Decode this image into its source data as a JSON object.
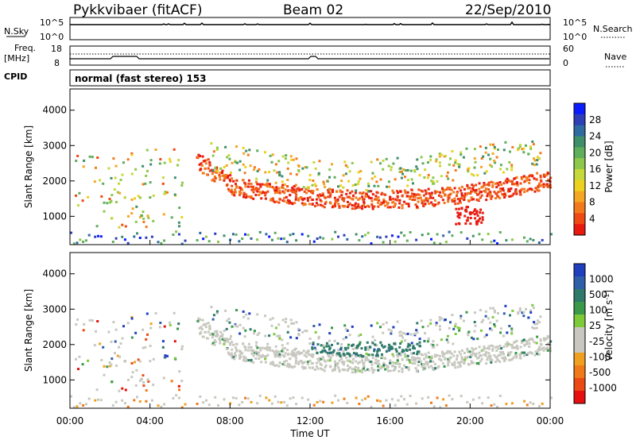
{
  "header": {
    "station": "Pykkvibaer (fitACF)",
    "beam": "Beam 02",
    "date": "22/Sep/2010"
  },
  "status": {
    "nsky_label": "N.Sky",
    "nsky_ticks": [
      "10^5",
      "10^0"
    ],
    "nsearch_label": "N.Search",
    "nsearch_ticks": [
      "10^5",
      "10^0"
    ],
    "freq_label_1": "Freq.",
    "freq_label_2": "[MHz]",
    "freq_ticks": [
      "18",
      "8"
    ],
    "nave_label": "Nave",
    "nave_ticks": [
      "60",
      "0"
    ],
    "cpid_label": "CPID",
    "cpid_text": "normal (fast stereo) 153"
  },
  "chart_data": [
    {
      "type": "heatmap",
      "name": "power",
      "ylabel": "Slant Range [km]",
      "yticks": [
        1000,
        2000,
        3000,
        4000
      ],
      "ylim": [
        200,
        4600
      ],
      "xlim": [
        0,
        24
      ],
      "colorbar_label": "Power [dB]",
      "colorbar_ticks": [
        "28",
        "24",
        "20",
        "16",
        "12",
        "8",
        "4"
      ],
      "colorbar_colors": [
        "#0b1cff",
        "#2e3fb8",
        "#2f6aa0",
        "#3f8f6a",
        "#5fae5a",
        "#8dc84a",
        "#c6d83a",
        "#ecd21e",
        "#f5a623",
        "#f37a1c",
        "#ef4a14",
        "#e81a10"
      ]
    },
    {
      "type": "heatmap",
      "name": "velocity",
      "ylabel": "Slant Range [km]",
      "yticks": [
        1000,
        2000,
        3000,
        4000
      ],
      "ylim": [
        200,
        4600
      ],
      "xlim": [
        0,
        24
      ],
      "xlabel": "Time UT",
      "xticks": [
        "00:00",
        "04:00",
        "08:00",
        "12:00",
        "16:00",
        "20:00",
        "00:00"
      ],
      "colorbar_label": "Velocity [m s",
      "colorbar_label_sup": "-1",
      "colorbar_label_end": "]",
      "colorbar_ticks": [
        "1000",
        "500",
        "100",
        "25",
        "-25",
        "-100",
        "-500",
        "-1000"
      ],
      "colorbar_colors": [
        "#1f3fbf",
        "#2f5fa8",
        "#2f7a6a",
        "#3a9a4a",
        "#7ecb3a",
        "#c8c8c0",
        "#c8c8c0",
        "#f0a020",
        "#f07a1a",
        "#ec4a14",
        "#e61010"
      ]
    }
  ]
}
